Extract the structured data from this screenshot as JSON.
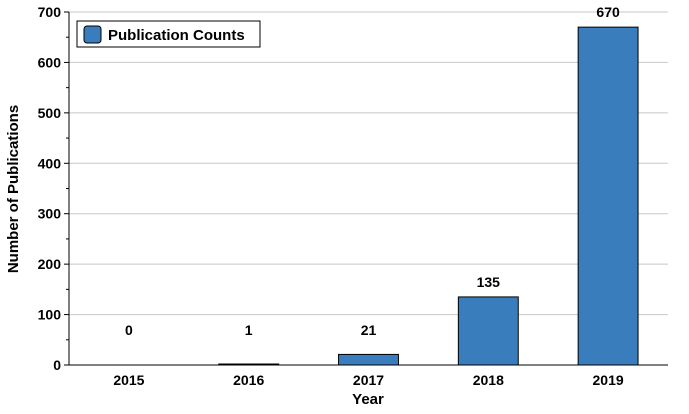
{
  "chart_data": {
    "type": "bar",
    "categories": [
      "2015",
      "2016",
      "2017",
      "2018",
      "2019"
    ],
    "series": [
      {
        "name": "Publication Counts",
        "values": [
          0,
          1,
          21,
          135,
          670
        ]
      }
    ],
    "data_labels": [
      "0",
      "1",
      "21",
      "135",
      "670"
    ],
    "title": "",
    "xlabel": "Year",
    "ylabel": "Number of Publications",
    "ylim": [
      0,
      700
    ],
    "yticks": [
      "0",
      "100",
      "200",
      "300",
      "400",
      "500",
      "600",
      "700"
    ],
    "grid": true,
    "legend_position": "top-left",
    "bar_color": "#3a7dbd"
  }
}
